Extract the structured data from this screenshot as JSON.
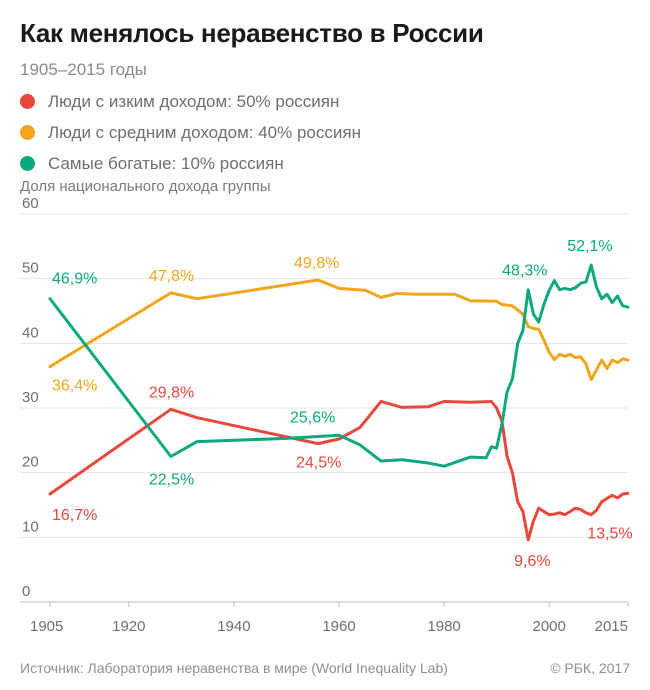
{
  "header": {
    "title": "Как менялось неравенство в России",
    "subtitle": "1905–2015 годы"
  },
  "legend": [
    {
      "label": "Люди с изким доходом: 50% россиян",
      "color": "#e8473c"
    },
    {
      "label": "Люди с средним доходом: 40% россиян",
      "color": "#f1a51c"
    },
    {
      "label": "Самые богатые: 10% россиян",
      "color": "#0ea77e"
    }
  ],
  "footer": {
    "source": "Источник: Лаборатория неравенства в мире (World Inequality Lab)",
    "copyright": "© РБК, 2017"
  },
  "chart_data": {
    "type": "line",
    "title": "Как менялось неравенство в России",
    "subtitle": "1905–2015 годы",
    "ylabel": "Доля национального дохода группы",
    "xlabel": "",
    "xlim": [
      1905,
      2015
    ],
    "ylim": [
      0,
      60
    ],
    "xticks": [
      "1905",
      "1920",
      "1940",
      "1960",
      "1980",
      "2000",
      "2015"
    ],
    "xtick_values": [
      1905,
      1920,
      1940,
      1960,
      1980,
      2000,
      2015
    ],
    "yticks": [
      "0",
      "10",
      "20",
      "30",
      "40",
      "50",
      "60"
    ],
    "ytick_values": [
      0,
      10,
      20,
      30,
      40,
      50,
      60
    ],
    "grid": "horizontal",
    "series": [
      {
        "name": "Люди с средним доходом: 40% россиян",
        "color": "#f1a51c",
        "x": [
          1905,
          1928,
          1933,
          1956,
          1960,
          1965,
          1968,
          1971,
          1975,
          1982,
          1985,
          1990,
          1991,
          1993,
          1995,
          1996,
          1997,
          1998,
          1999,
          2000,
          2001,
          2002,
          2003,
          2004,
          2005,
          2006,
          2007,
          2008,
          2009,
          2010,
          2011,
          2012,
          2013,
          2014,
          2015
        ],
        "y": [
          36.4,
          47.8,
          46.9,
          49.8,
          48.5,
          48.2,
          47.1,
          47.7,
          47.6,
          47.6,
          46.6,
          46.5,
          46.0,
          45.8,
          44.5,
          42.6,
          42.3,
          42.2,
          40.5,
          38.6,
          37.5,
          38.3,
          38.0,
          38.3,
          37.8,
          37.9,
          36.8,
          34.4,
          35.9,
          37.4,
          36.1,
          37.4,
          37.0,
          37.6,
          37.4
        ],
        "labels": [
          {
            "text": "36,4%",
            "x": 1905,
            "y": 36.4
          },
          {
            "text": "47,8%",
            "x": 1928,
            "y": 47.8
          },
          {
            "text": "49,8%",
            "x": 1956,
            "y": 49.8
          }
        ]
      },
      {
        "name": "Люди с изким доходом: 50% россиян",
        "color": "#e8473c",
        "x": [
          1905,
          1928,
          1933,
          1956,
          1960,
          1964,
          1968,
          1972,
          1977,
          1980,
          1985,
          1989,
          1990,
          1991,
          1992,
          1993,
          1994,
          1995,
          1996,
          1997,
          1998,
          1999,
          2000,
          2001,
          2002,
          2003,
          2004,
          2005,
          2006,
          2007,
          2008,
          2009,
          2010,
          2011,
          2012,
          2013,
          2014,
          2015
        ],
        "y": [
          16.7,
          29.8,
          28.5,
          24.5,
          25.2,
          27.0,
          31.0,
          30.1,
          30.2,
          31.0,
          30.9,
          31.0,
          30.0,
          28.0,
          22.5,
          20.0,
          15.5,
          14.0,
          9.6,
          12.5,
          14.5,
          14.0,
          13.5,
          13.6,
          13.8,
          13.5,
          14.0,
          14.5,
          14.3,
          13.8,
          13.5,
          14.2,
          15.5,
          16.0,
          16.5,
          16.1,
          16.7,
          16.8
        ],
        "labels": [
          {
            "text": "16,7%",
            "x": 1905,
            "y": 16.7
          },
          {
            "text": "29,8%",
            "x": 1928,
            "y": 29.8
          },
          {
            "text": "24,5%",
            "x": 1956,
            "y": 24.5
          },
          {
            "text": "9,6%",
            "x": 1996,
            "y": 9.6
          },
          {
            "text": "13,5%",
            "x": 2008,
            "y": 13.5
          }
        ]
      },
      {
        "name": "Самые богатые: 10% россиян",
        "color": "#0ea77e",
        "x": [
          1905,
          1928,
          1933,
          1950,
          1956,
          1960,
          1964,
          1968,
          1972,
          1977,
          1980,
          1985,
          1988,
          1989,
          1990,
          1991,
          1992,
          1993,
          1994,
          1995,
          1996,
          1997,
          1998,
          1999,
          2000,
          2001,
          2002,
          2003,
          2004,
          2005,
          2006,
          2007,
          2008,
          2009,
          2010,
          2011,
          2012,
          2013,
          2014,
          2015
        ],
        "y": [
          46.9,
          22.5,
          24.8,
          25.3,
          25.6,
          25.8,
          24.3,
          21.8,
          22.0,
          21.5,
          21.0,
          22.4,
          22.3,
          24.0,
          23.8,
          27.5,
          32.5,
          34.5,
          40.0,
          42.0,
          48.3,
          44.5,
          43.3,
          46.0,
          48.2,
          49.7,
          48.3,
          48.5,
          48.3,
          48.6,
          49.3,
          49.5,
          52.1,
          48.7,
          46.9,
          47.6,
          46.3,
          47.3,
          45.8,
          45.6
        ],
        "labels": [
          {
            "text": "46,9%",
            "x": 1905,
            "y": 46.9
          },
          {
            "text": "22,5%",
            "x": 1928,
            "y": 22.5
          },
          {
            "text": "25,6%",
            "x": 1956,
            "y": 25.6
          },
          {
            "text": "48,3%",
            "x": 1996,
            "y": 48.3
          },
          {
            "text": "52,1%",
            "x": 2008,
            "y": 52.1
          }
        ]
      }
    ]
  }
}
